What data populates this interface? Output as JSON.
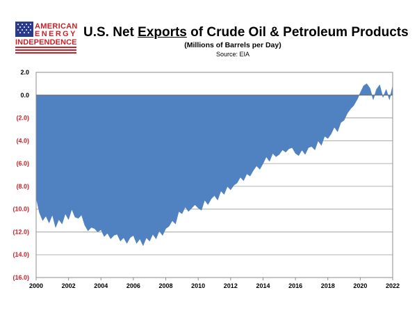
{
  "logo": {
    "line1": "AMERICAN",
    "line2": "ENERGY",
    "line3": "INDEPENDENCE",
    "flag_blue": "#2b3b8c",
    "flag_red": "#cc2027"
  },
  "header": {
    "title_pre": "U.S. Net ",
    "title_underlined": "Exports",
    "title_post": " of Crude Oil & Petroleum Products",
    "subtitle": "(Millions of Barrels per Day)",
    "source": "Source: EIA"
  },
  "chart_data": {
    "type": "area",
    "title": "U.S. Net Exports of Crude Oil & Petroleum Products",
    "ylabel": "",
    "xlabel": "",
    "xlim": [
      2000,
      2022
    ],
    "ylim": [
      -16.0,
      2.0
    ],
    "grid": true,
    "fill_color": "#5081c0",
    "negative_label_color": "#cc2027",
    "x_ticks": [
      "2000",
      "2002",
      "2004",
      "2006",
      "2008",
      "2010",
      "2012",
      "2014",
      "2016",
      "2018",
      "2020",
      "2022"
    ],
    "y_ticks": [
      "2.0",
      "0.0",
      "(2.0)",
      "(4.0)",
      "(6.0)",
      "(8.0)",
      "(10.0)",
      "(12.0)",
      "(14.0)",
      "(16.0)"
    ],
    "y_tick_values": [
      2,
      0,
      -2,
      -4,
      -6,
      -8,
      -10,
      -12,
      -14,
      -16
    ],
    "x": [
      2000.0,
      2000.2,
      2000.4,
      2000.6,
      2000.8,
      2001.0,
      2001.2,
      2001.4,
      2001.6,
      2001.8,
      2002.0,
      2002.2,
      2002.4,
      2002.6,
      2002.8,
      2003.0,
      2003.2,
      2003.4,
      2003.6,
      2003.8,
      2004.0,
      2004.2,
      2004.4,
      2004.6,
      2004.8,
      2005.0,
      2005.2,
      2005.4,
      2005.6,
      2005.8,
      2006.0,
      2006.2,
      2006.4,
      2006.6,
      2006.8,
      2007.0,
      2007.2,
      2007.4,
      2007.6,
      2007.8,
      2008.0,
      2008.2,
      2008.4,
      2008.6,
      2008.8,
      2009.0,
      2009.2,
      2009.4,
      2009.6,
      2009.8,
      2010.0,
      2010.2,
      2010.4,
      2010.6,
      2010.8,
      2011.0,
      2011.2,
      2011.4,
      2011.6,
      2011.8,
      2012.0,
      2012.2,
      2012.4,
      2012.6,
      2012.8,
      2013.0,
      2013.2,
      2013.4,
      2013.6,
      2013.8,
      2014.0,
      2014.2,
      2014.4,
      2014.6,
      2014.8,
      2015.0,
      2015.2,
      2015.4,
      2015.6,
      2015.8,
      2016.0,
      2016.2,
      2016.4,
      2016.6,
      2016.8,
      2017.0,
      2017.2,
      2017.4,
      2017.6,
      2017.8,
      2018.0,
      2018.2,
      2018.4,
      2018.6,
      2018.8,
      2019.0,
      2019.2,
      2019.4,
      2019.6,
      2019.8,
      2020.0,
      2020.2,
      2020.4,
      2020.6,
      2020.8,
      2021.0,
      2021.2,
      2021.4,
      2021.6,
      2021.8,
      2022.0
    ],
    "series": [
      {
        "values": [
          -9.0,
          -10.3,
          -11.0,
          -10.6,
          -11.2,
          -10.5,
          -11.6,
          -10.9,
          -11.3,
          -10.4,
          -10.9,
          -10.0,
          -10.7,
          -10.8,
          -10.5,
          -11.4,
          -11.9,
          -11.6,
          -11.7,
          -12.0,
          -11.8,
          -12.4,
          -12.1,
          -12.6,
          -12.3,
          -12.2,
          -12.8,
          -12.5,
          -13.0,
          -12.5,
          -12.3,
          -13.0,
          -12.6,
          -13.2,
          -12.5,
          -12.8,
          -12.2,
          -12.6,
          -11.9,
          -12.3,
          -11.7,
          -11.5,
          -11.0,
          -11.3,
          -10.2,
          -10.4,
          -9.8,
          -10.2,
          -9.9,
          -9.6,
          -9.9,
          -10.1,
          -9.2,
          -9.6,
          -9.1,
          -8.8,
          -9.2,
          -8.4,
          -8.7,
          -8.0,
          -8.3,
          -7.9,
          -7.7,
          -7.2,
          -7.5,
          -6.9,
          -7.1,
          -6.6,
          -6.2,
          -6.5,
          -6.0,
          -5.4,
          -5.8,
          -5.1,
          -5.4,
          -5.2,
          -4.8,
          -5.0,
          -4.7,
          -4.6,
          -5.1,
          -5.3,
          -4.8,
          -5.2,
          -4.6,
          -4.5,
          -4.8,
          -4.0,
          -4.4,
          -3.6,
          -3.8,
          -3.4,
          -2.8,
          -3.2,
          -2.4,
          -2.2,
          -1.6,
          -1.2,
          -0.9,
          -0.4,
          0.2,
          0.8,
          1.0,
          0.6,
          -0.4,
          0.5,
          0.9,
          -0.2,
          0.5,
          -0.4,
          0.8
        ]
      }
    ]
  }
}
